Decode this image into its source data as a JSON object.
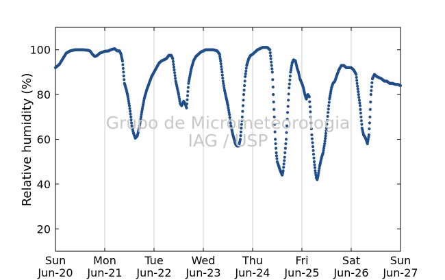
{
  "chart_data": {
    "type": "scatter",
    "title": "",
    "ylabel": "Relative humidity (%)",
    "xlabel": "",
    "ylim": [
      10,
      110
    ],
    "xlim_days": [
      0,
      7
    ],
    "y_ticks": [
      20,
      40,
      60,
      80,
      100
    ],
    "x_ticks": [
      {
        "day": "Sun",
        "date": "Jun-20"
      },
      {
        "day": "Mon",
        "date": "Jun-21"
      },
      {
        "day": "Tue",
        "date": "Jun-22"
      },
      {
        "day": "Wed",
        "date": "Jun-23"
      },
      {
        "day": "Thu",
        "date": "Jun-24"
      },
      {
        "day": "Fri",
        "date": "Jun-25"
      },
      {
        "day": "Sat",
        "date": "Jun-26"
      },
      {
        "day": "Sun",
        "date": "Jun-27"
      }
    ],
    "grid": "vertical",
    "watermark": [
      "Grupo de Micrometeorologia",
      "IAG / USP"
    ],
    "marker_color": "#1f4e8c",
    "series": [
      {
        "points": [
          [
            0.0,
            92
          ],
          [
            0.08,
            93.5
          ],
          [
            0.15,
            96
          ],
          [
            0.22,
            98.5
          ],
          [
            0.3,
            99.5
          ],
          [
            0.4,
            100
          ],
          [
            0.55,
            100
          ],
          [
            0.65,
            99.8
          ],
          [
            0.7,
            99.5
          ],
          [
            0.75,
            98
          ],
          [
            0.8,
            97
          ],
          [
            0.85,
            97.5
          ],
          [
            0.9,
            98.5
          ],
          [
            1.0,
            99.3
          ],
          [
            1.08,
            99.5
          ],
          [
            1.12,
            100
          ],
          [
            1.2,
            100.5
          ],
          [
            1.25,
            99.5
          ],
          [
            1.3,
            99.5
          ],
          [
            1.33,
            98
          ],
          [
            1.36,
            95
          ],
          [
            1.38,
            90
          ],
          [
            1.4,
            85
          ],
          [
            1.44,
            82
          ],
          [
            1.47,
            79
          ],
          [
            1.5,
            75
          ],
          [
            1.53,
            70
          ],
          [
            1.55,
            66
          ],
          [
            1.58,
            63
          ],
          [
            1.62,
            60.5
          ],
          [
            1.66,
            61.5
          ],
          [
            1.7,
            65
          ],
          [
            1.75,
            72
          ],
          [
            1.8,
            78
          ],
          [
            1.85,
            82
          ],
          [
            1.9,
            85
          ],
          [
            1.95,
            88
          ],
          [
            2.0,
            90
          ],
          [
            2.05,
            92
          ],
          [
            2.1,
            94
          ],
          [
            2.15,
            95
          ],
          [
            2.2,
            95.5
          ],
          [
            2.25,
            96
          ],
          [
            2.3,
            97.5
          ],
          [
            2.35,
            97.5
          ],
          [
            2.38,
            96
          ],
          [
            2.41,
            91
          ],
          [
            2.44,
            86
          ],
          [
            2.47,
            83
          ],
          [
            2.5,
            80
          ],
          [
            2.53,
            76
          ],
          [
            2.56,
            75
          ],
          [
            2.6,
            77
          ],
          [
            2.63,
            76
          ],
          [
            2.66,
            74
          ],
          [
            2.7,
            85
          ],
          [
            2.75,
            91
          ],
          [
            2.8,
            95
          ],
          [
            2.85,
            97
          ],
          [
            2.9,
            98
          ],
          [
            2.95,
            99
          ],
          [
            3.0,
            99.5
          ],
          [
            3.05,
            100
          ],
          [
            3.1,
            100
          ],
          [
            3.2,
            100
          ],
          [
            3.28,
            99.5
          ],
          [
            3.33,
            98
          ],
          [
            3.35,
            95
          ],
          [
            3.38,
            90
          ],
          [
            3.4,
            86
          ],
          [
            3.43,
            82
          ],
          [
            3.46,
            79
          ],
          [
            3.5,
            75
          ],
          [
            3.53,
            71
          ],
          [
            3.56,
            66
          ],
          [
            3.6,
            62
          ],
          [
            3.65,
            58
          ],
          [
            3.68,
            57
          ],
          [
            3.72,
            57
          ],
          [
            3.75,
            60
          ],
          [
            3.77,
            65
          ],
          [
            3.79,
            70
          ],
          [
            3.82,
            80
          ],
          [
            3.85,
            88
          ],
          [
            3.88,
            93
          ],
          [
            3.92,
            96
          ],
          [
            3.96,
            97.5
          ],
          [
            4.0,
            98
          ],
          [
            4.05,
            99
          ],
          [
            4.1,
            100
          ],
          [
            4.15,
            100.5
          ],
          [
            4.2,
            101
          ],
          [
            4.3,
            101
          ],
          [
            4.35,
            100
          ],
          [
            4.37,
            96
          ],
          [
            4.4,
            90
          ],
          [
            4.42,
            80
          ],
          [
            4.44,
            70
          ],
          [
            4.46,
            60
          ],
          [
            4.48,
            54
          ],
          [
            4.5,
            50
          ],
          [
            4.53,
            48
          ],
          [
            4.56,
            46
          ],
          [
            4.58,
            45
          ],
          [
            4.6,
            44
          ],
          [
            4.62,
            46
          ],
          [
            4.65,
            52
          ],
          [
            4.68,
            60
          ],
          [
            4.71,
            72
          ],
          [
            4.74,
            83
          ],
          [
            4.77,
            90
          ],
          [
            4.8,
            94
          ],
          [
            4.83,
            95.5
          ],
          [
            4.87,
            95
          ],
          [
            4.9,
            92
          ],
          [
            4.93,
            90
          ],
          [
            4.96,
            87
          ],
          [
            5.0,
            85
          ],
          [
            5.03,
            83
          ],
          [
            5.06,
            80
          ],
          [
            5.09,
            78
          ],
          [
            5.12,
            80
          ],
          [
            5.15,
            79
          ],
          [
            5.18,
            70
          ],
          [
            5.2,
            62
          ],
          [
            5.23,
            55
          ],
          [
            5.25,
            50
          ],
          [
            5.27,
            46
          ],
          [
            5.29,
            43
          ],
          [
            5.31,
            42
          ],
          [
            5.33,
            44
          ],
          [
            5.36,
            48
          ],
          [
            5.4,
            52
          ],
          [
            5.43,
            54
          ],
          [
            5.46,
            58
          ],
          [
            5.5,
            65
          ],
          [
            5.53,
            72
          ],
          [
            5.56,
            78
          ],
          [
            5.6,
            83
          ],
          [
            5.63,
            85
          ],
          [
            5.67,
            86
          ],
          [
            5.7,
            88
          ],
          [
            5.75,
            91
          ],
          [
            5.8,
            93
          ],
          [
            5.85,
            93
          ],
          [
            5.9,
            92
          ],
          [
            5.95,
            92
          ],
          [
            6.0,
            92
          ],
          [
            6.05,
            91
          ],
          [
            6.1,
            89
          ],
          [
            6.12,
            85
          ],
          [
            6.15,
            80
          ],
          [
            6.18,
            75
          ],
          [
            6.2,
            70
          ],
          [
            6.22,
            65
          ],
          [
            6.25,
            62
          ],
          [
            6.28,
            61
          ],
          [
            6.3,
            60
          ],
          [
            6.33,
            58
          ],
          [
            6.36,
            62
          ],
          [
            6.38,
            70
          ],
          [
            6.4,
            80
          ],
          [
            6.43,
            87
          ],
          [
            6.47,
            89
          ],
          [
            6.52,
            88
          ],
          [
            6.57,
            87.5
          ],
          [
            6.62,
            87
          ],
          [
            6.67,
            86
          ],
          [
            6.72,
            86
          ],
          [
            6.78,
            85
          ],
          [
            6.84,
            85
          ],
          [
            6.9,
            84.5
          ],
          [
            6.95,
            84.5
          ],
          [
            7.0,
            84
          ]
        ]
      }
    ]
  }
}
